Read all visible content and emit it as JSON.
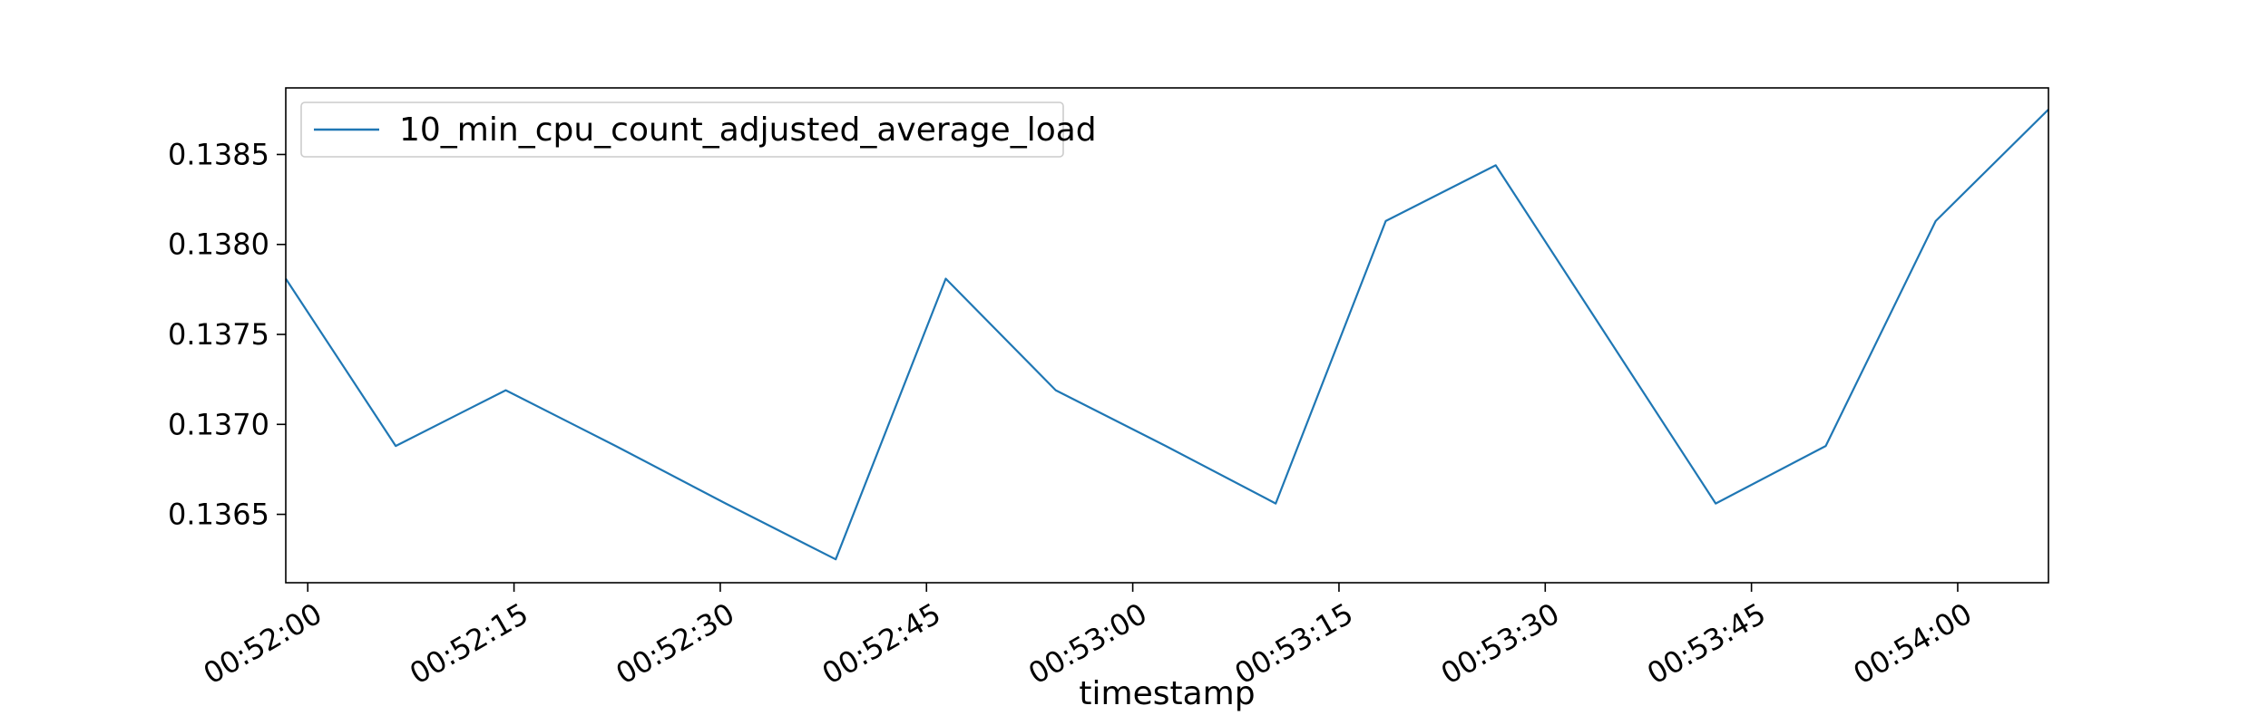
{
  "chart_data": {
    "type": "line",
    "title": "",
    "xlabel": "timestamp",
    "ylabel": "",
    "x_tick_labels": [
      "00:52:00",
      "00:52:15",
      "00:52:30",
      "00:52:45",
      "00:53:00",
      "00:53:15",
      "00:53:30",
      "00:53:45",
      "00:54:00"
    ],
    "x_ticks_seconds": [
      0,
      15,
      30,
      45,
      60,
      75,
      90,
      105,
      120
    ],
    "y_tick_labels": [
      "0.1365",
      "0.1370",
      "0.1375",
      "0.1380",
      "0.1385"
    ],
    "y_ticks": [
      0.1365,
      0.137,
      0.1375,
      0.138,
      0.1385
    ],
    "xlim_seconds": [
      -1.6,
      126.6
    ],
    "ylim": [
      0.13612,
      0.13887
    ],
    "grid": false,
    "legend_position": "upper-left",
    "series": [
      {
        "name": "10_min_cpu_count_adjusted_average_load",
        "color": "#1f77b4",
        "x_seconds": [
          -1.6,
          6.4,
          14.4,
          22.4,
          30.4,
          38.4,
          46.4,
          54.4,
          62.4,
          70.4,
          78.4,
          86.4,
          94.4,
          102.4,
          110.4,
          118.4,
          126.6
        ],
        "values": [
          0.13781,
          0.13688,
          0.13719,
          0.13688,
          0.13656,
          0.13625,
          0.13781,
          0.13719,
          0.13688,
          0.13656,
          0.13813,
          0.13844,
          0.1375,
          0.13656,
          0.13688,
          0.13813,
          0.13875
        ]
      }
    ]
  }
}
